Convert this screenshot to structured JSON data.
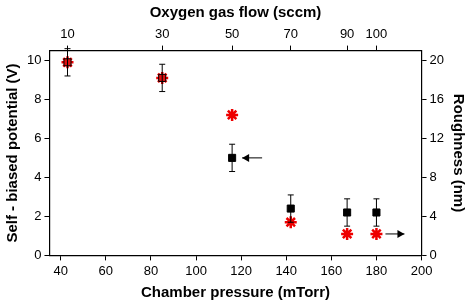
{
  "chart_data": {
    "type": "scatter",
    "xlabel": "Chamber pressure (mTorr)",
    "ylabel": "Self - biased potential (V)",
    "y2label": "Roughness (nm)",
    "xlim": [
      35,
      200
    ],
    "xticks": [
      40,
      60,
      80,
      100,
      120,
      140,
      160,
      180,
      200
    ],
    "ylim": [
      0,
      10.5
    ],
    "yticks": [
      0,
      2,
      4,
      6,
      8,
      10
    ],
    "y2lim": [
      0,
      21
    ],
    "y2ticks": [
      0,
      4,
      8,
      12,
      16,
      20
    ],
    "top_axis": {
      "label": "Oxygen gas flow (sccm)",
      "ticks": [
        {
          "value": 43,
          "label": "10"
        },
        {
          "value": 85,
          "label": "30"
        },
        {
          "value": 116,
          "label": "50"
        },
        {
          "value": 142,
          "label": "70"
        },
        {
          "value": 167,
          "label": "90"
        },
        {
          "value": 180,
          "label": "100"
        }
      ]
    },
    "grid": false,
    "x": [
      43,
      85,
      116,
      142,
      167,
      180
    ],
    "series": [
      {
        "name": "Self - biased potential",
        "marker": "square",
        "color": "#000000",
        "colors": [
          "#dd1111",
          "#dd1111",
          "#000000",
          "#000000",
          "#000000",
          "#000000"
        ],
        "values": [
          9.9,
          9.1,
          5.0,
          2.4,
          2.2,
          2.2
        ],
        "errors": [
          0.7,
          0.7,
          0.7,
          0.7,
          0.7,
          0.7
        ]
      },
      {
        "name": "Roughness",
        "marker": "star",
        "color": "#ee0000",
        "axis": "y2",
        "values": [
          19.8,
          18.2,
          14.4,
          3.4,
          2.2,
          2.2
        ]
      }
    ]
  }
}
